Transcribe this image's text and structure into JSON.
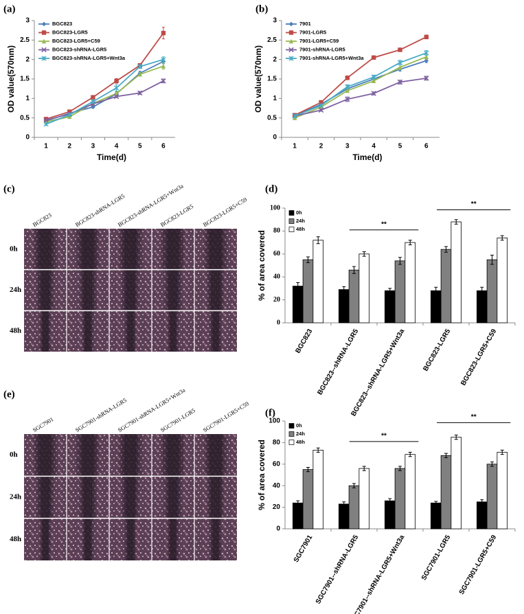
{
  "chart_data": [
    {
      "panel_label": "(a)",
      "type": "line",
      "categories": [
        "1",
        "2",
        "3",
        "4",
        "5",
        "6"
      ],
      "xlabel": "Time(d)",
      "ylabel": "OD value(570nm)",
      "ylim": [
        0,
        3
      ],
      "yticks": [
        0,
        0.5,
        1,
        1.5,
        2,
        2.5,
        3
      ],
      "series": [
        {
          "name": "BGC823",
          "color": "#4a7ebb",
          "values": [
            0.42,
            0.62,
            0.78,
            1.12,
            1.65,
            1.95
          ],
          "errors": [
            0.02,
            0.03,
            0.03,
            0.05,
            0.05,
            0.06
          ]
        },
        {
          "name": "BGC823-LGR5",
          "color": "#be4b48",
          "values": [
            0.47,
            0.66,
            1.03,
            1.45,
            1.85,
            2.68
          ],
          "errors": [
            0.02,
            0.03,
            0.03,
            0.06,
            0.04,
            0.15
          ]
        },
        {
          "name": "BGC823-LGR5+C59",
          "color": "#98b954",
          "values": [
            0.4,
            0.53,
            0.87,
            1.13,
            1.62,
            1.83
          ],
          "errors": [
            0.02,
            0.02,
            0.04,
            0.05,
            0.05,
            0.08
          ]
        },
        {
          "name": "BGC823-shRNA-LGR5",
          "color": "#7d60a0",
          "values": [
            0.44,
            0.6,
            0.86,
            1.05,
            1.14,
            1.45
          ],
          "errors": [
            0.02,
            0.02,
            0.03,
            0.03,
            0.04,
            0.05
          ]
        },
        {
          "name": "BGC823-shRNA-LGR5+Wnt3a",
          "color": "#46aac5",
          "values": [
            0.34,
            0.58,
            0.92,
            1.27,
            1.82,
            2.0
          ],
          "errors": [
            0.02,
            0.03,
            0.04,
            0.08,
            0.05,
            0.07
          ]
        }
      ]
    },
    {
      "panel_label": "(b)",
      "type": "line",
      "categories": [
        "1",
        "2",
        "3",
        "4",
        "5",
        "6"
      ],
      "xlabel": "Time(d)",
      "ylabel": "OD value(570nm)",
      "ylim": [
        0,
        3
      ],
      "yticks": [
        0,
        0.5,
        1,
        1.5,
        2,
        2.5,
        3
      ],
      "series": [
        {
          "name": "7901",
          "color": "#4a7ebb",
          "values": [
            0.55,
            0.85,
            1.25,
            1.5,
            1.75,
            1.97
          ],
          "errors": [
            0.02,
            0.03,
            0.04,
            0.05,
            0.05,
            0.05
          ]
        },
        {
          "name": "7901-LGR5",
          "color": "#be4b48",
          "values": [
            0.57,
            0.9,
            1.53,
            2.05,
            2.25,
            2.58
          ],
          "errors": [
            0.02,
            0.03,
            0.05,
            0.04,
            0.04,
            0.05
          ]
        },
        {
          "name": "7901-LGR5+C59",
          "color": "#98b954",
          "values": [
            0.5,
            0.78,
            1.2,
            1.45,
            1.8,
            2.07
          ],
          "errors": [
            0.02,
            0.03,
            0.04,
            0.04,
            0.06,
            0.07
          ]
        },
        {
          "name": "7901-shRNA-LGR5",
          "color": "#7d60a0",
          "values": [
            0.55,
            0.7,
            0.98,
            1.13,
            1.42,
            1.52
          ],
          "errors": [
            0.02,
            0.03,
            0.06,
            0.04,
            0.05,
            0.05
          ]
        },
        {
          "name": "7901-shRNA-LGR5+Wnt3a",
          "color": "#46aac5",
          "values": [
            0.55,
            0.82,
            1.3,
            1.55,
            1.92,
            2.17
          ],
          "errors": [
            0.02,
            0.03,
            0.05,
            0.05,
            0.06,
            0.06
          ]
        }
      ]
    },
    {
      "panel_label": "(d)",
      "type": "bar",
      "categories": [
        "BGC823",
        "BGC823--shRNA-LGR5",
        "BGC823--shRNA-LGR5+Wnt3a",
        "BGC823-LGR5",
        "BGC823-LGR5+C59"
      ],
      "ylabel": "% of area covered",
      "ylim": [
        0,
        100
      ],
      "yticks": [
        0,
        20,
        40,
        60,
        80,
        100
      ],
      "annotations": [
        "**",
        "**"
      ],
      "series": [
        {
          "name": "0h",
          "color": "#000000",
          "values": [
            32,
            29,
            28,
            28,
            28
          ],
          "errors": [
            3,
            2.5,
            2,
            3,
            3
          ]
        },
        {
          "name": "24h",
          "color": "#808080",
          "values": [
            55,
            46,
            54,
            64,
            55
          ],
          "errors": [
            2.5,
            3,
            3,
            2.5,
            4
          ]
        },
        {
          "name": "48h",
          "color": "#ffffff",
          "values": [
            72,
            60,
            70,
            88,
            74
          ],
          "errors": [
            3,
            2,
            2,
            2,
            2
          ]
        }
      ]
    },
    {
      "panel_label": "(f)",
      "type": "bar",
      "categories": [
        "SGC7901",
        "SGC7901--shRNA-LGR5",
        "SGC7901--shRNA-LGR5+Wnt3a",
        "SGC7901-LGR5",
        "SGC7901-LGR5+C59"
      ],
      "ylabel": "% of area covered",
      "ylim": [
        0,
        100
      ],
      "yticks": [
        0,
        20,
        40,
        60,
        80,
        100
      ],
      "annotations": [
        "**",
        "**"
      ],
      "series": [
        {
          "name": "0h",
          "color": "#000000",
          "values": [
            24,
            23,
            26,
            24,
            25
          ],
          "errors": [
            2,
            2,
            2,
            1.5,
            2
          ]
        },
        {
          "name": "24h",
          "color": "#808080",
          "values": [
            55,
            40,
            56,
            68,
            60
          ],
          "errors": [
            2,
            2,
            2,
            2,
            2
          ]
        },
        {
          "name": "48h",
          "color": "#ffffff",
          "values": [
            73,
            56,
            69,
            85,
            71
          ],
          "errors": [
            2,
            2,
            2,
            2,
            2
          ]
        }
      ]
    }
  ],
  "image_panels": [
    {
      "panel_label": "(c)",
      "columns": [
        "BGC823",
        "BGC823-shRNA-LGR5",
        "BGC823-shRNA-LGR5+Wnt3a",
        "BGC823-LGR5",
        "BGC823-LGR5+C59"
      ],
      "rows": [
        "0h",
        "24h",
        "48h"
      ]
    },
    {
      "panel_label": "(e)",
      "columns": [
        "SGC7901",
        "SGC7901-shRNA-LGR5",
        "SGC7901-shRNA-LGR5+Wnt3a",
        "SGC7901-LGR5",
        "SGC7901-LGR5+C59"
      ],
      "rows": [
        "0h",
        "24h",
        "48h"
      ]
    }
  ]
}
